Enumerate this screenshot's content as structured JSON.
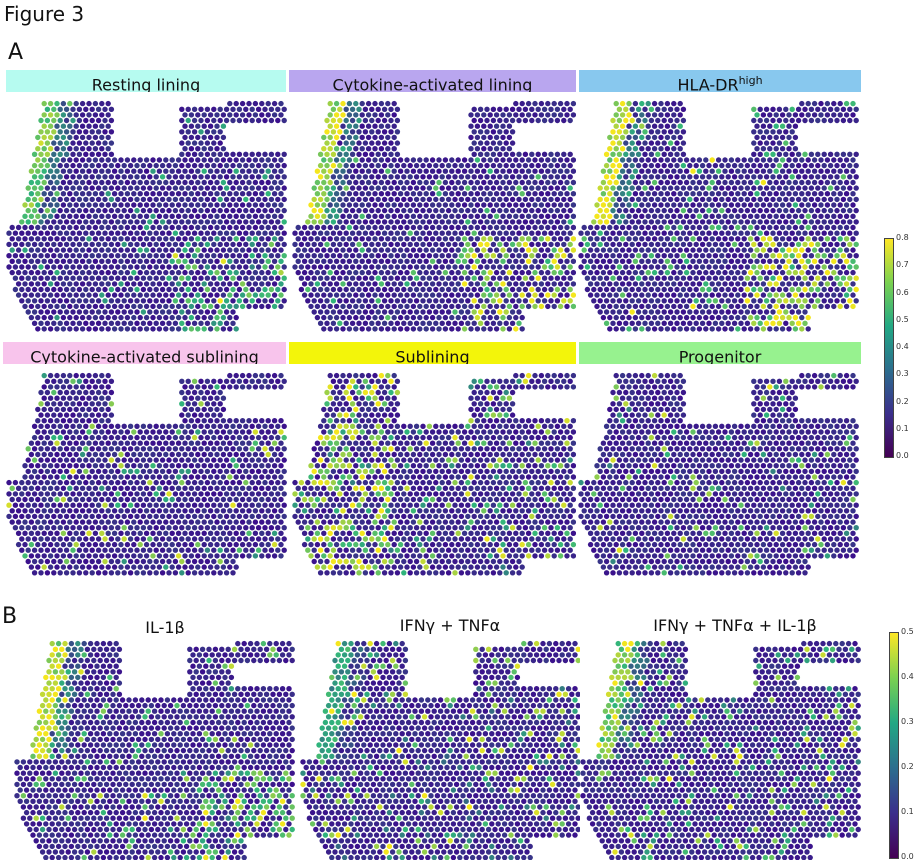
{
  "figure": {
    "title": "Figure 3"
  },
  "panel_a": {
    "letter": "A",
    "headers": [
      {
        "label": "Resting lining",
        "sup": "",
        "color": "#b6fbf0"
      },
      {
        "label": "Cytokine-activated lining",
        "sup": "",
        "color": "#b9a6ef"
      },
      {
        "label": "HLA-DR",
        "sup": "high",
        "color": "#88c8ee"
      },
      {
        "label": "Cytokine-activated sublining",
        "sup": "",
        "color": "#f8c4ec"
      },
      {
        "label": "Sublining",
        "sup": "",
        "color": "#f3f50a"
      },
      {
        "label": "Progenitor",
        "sup": "",
        "color": "#97f28f"
      }
    ],
    "colorbar_ticks": [
      "0.8",
      "0.7",
      "0.6",
      "0.5",
      "0.4",
      "0.3",
      "0.2",
      "0.1",
      "0.0"
    ]
  },
  "panel_b": {
    "letter": "B",
    "headers": [
      "IL-1β",
      "IFNγ + TNFα",
      "IFNγ + TNFα + IL-1β"
    ],
    "colorbar_ticks": [
      "0.5",
      "0.4",
      "0.3",
      "0.2",
      "0.1",
      "0.0"
    ]
  },
  "colors": {
    "low": "#3b0f8c",
    "mid": "#2fb47c",
    "high": "#f4e61e"
  }
}
